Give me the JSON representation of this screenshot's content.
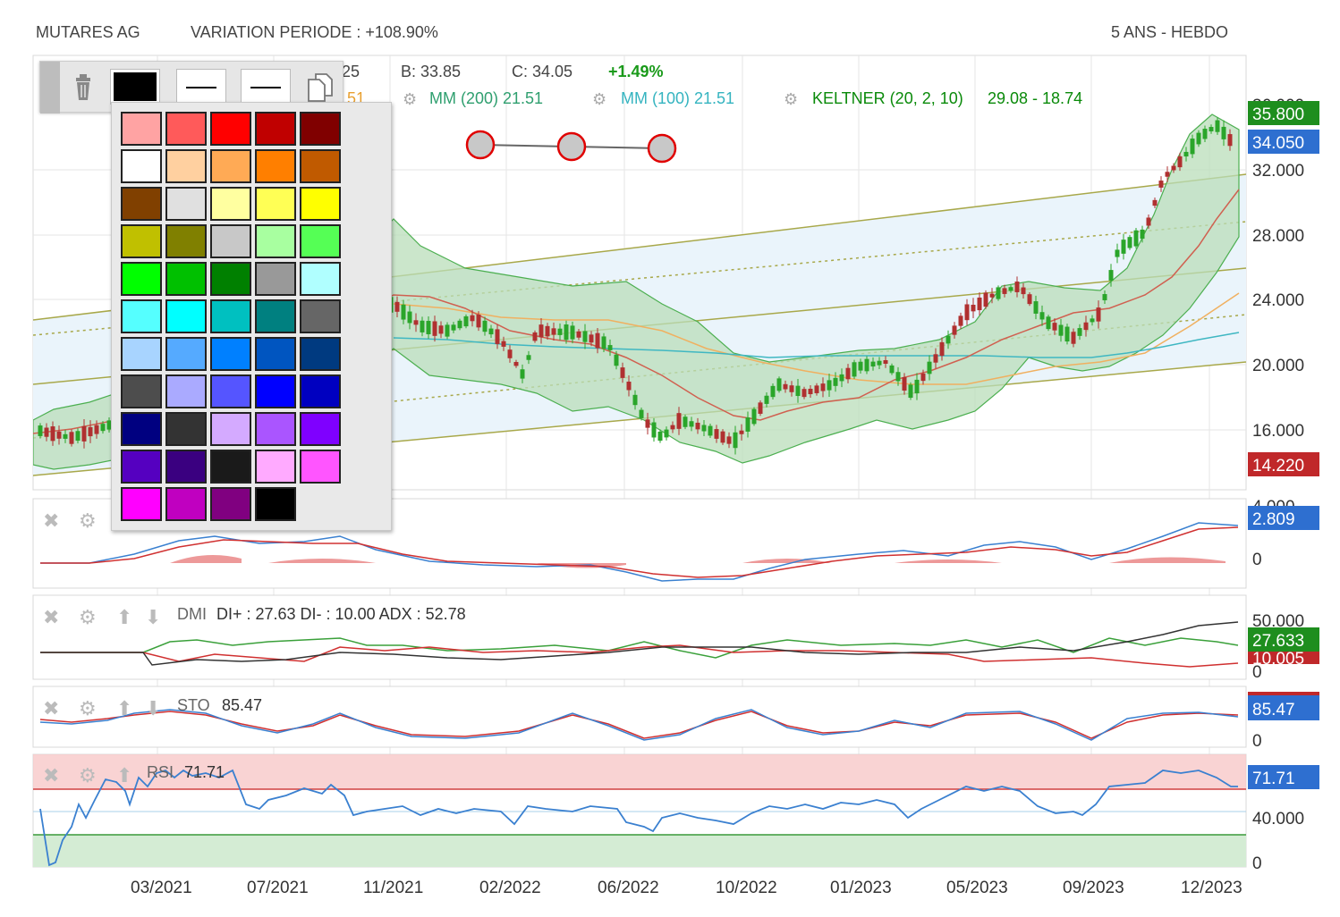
{
  "header": {
    "stock_name": "MUTARES AG",
    "variation": "VARIATION PERIODE : +108.90%",
    "period": "5 ANS - HEBDO"
  },
  "ohlc": {
    "open_partial": "25",
    "high_partial": "51",
    "low": "B: 33.85",
    "close": "C: 34.05",
    "change": "+1.49%"
  },
  "indicators": {
    "mm200": "MM (200)  21.51",
    "mm100": "MM (100)  21.51",
    "keltner_name": "KELTNER (20, 2, 10)",
    "keltner_values": "29.08 - 18.74"
  },
  "price_axis": {
    "ticks": [
      "32.000",
      "28.000",
      "24.000",
      "20.000",
      "16.000"
    ],
    "partial_top": "36.000",
    "tag_high": "35.800",
    "tag_last": "34.050",
    "tag_low": "14.220"
  },
  "macd": {
    "partial_top": "4.000",
    "tag_value": "2.809",
    "zero": "0"
  },
  "dmi": {
    "name": "DMI",
    "readout": "DI+ : 27.63 DI- : 10.00 ADX : 52.78",
    "tick_top": "50.000",
    "tag_di_plus": "27.633",
    "tag_di_minus": "10.005",
    "zero": "0"
  },
  "sto": {
    "name": "STO",
    "value": "85.47",
    "tag_value": "85.47",
    "zero": "0"
  },
  "rsi": {
    "name": "RSI",
    "value": "71.71",
    "tag_value": "71.71",
    "tick_mid": "40.000",
    "zero": "0"
  },
  "x_axis": {
    "labels": [
      "03/2021",
      "07/2021",
      "11/2021",
      "02/2022",
      "06/2022",
      "10/2022",
      "01/2023",
      "05/2023",
      "09/2023",
      "12/2023"
    ]
  },
  "palette_colors": [
    "#ffa3a3",
    "#ff5a5a",
    "#ff0000",
    "#c00000",
    "#800000",
    "#ffffff",
    "#ffd0a0",
    "#ffaa55",
    "#ff7f00",
    "#c05a00",
    "#804000",
    "#e0e0e0",
    "#ffffa0",
    "#ffff55",
    "#ffff00",
    "#c0c000",
    "#808000",
    "#c8c8c8",
    "#a8ffa0",
    "#55ff55",
    "#00ff00",
    "#00c000",
    "#008000",
    "#999999",
    "#b0ffff",
    "#55ffff",
    "#00ffff",
    "#00c0c0",
    "#008080",
    "#666666",
    "#a8d4ff",
    "#55aaff",
    "#0080ff",
    "#0055c0",
    "#003a80",
    "#4d4d4d",
    "#aaaaff",
    "#5555ff",
    "#0000ff",
    "#0000c0",
    "#000080",
    "#333333",
    "#d4aaff",
    "#aa55ff",
    "#7f00ff",
    "#5500c0",
    "#3a0080",
    "#1a1a1a",
    "#ffaaff",
    "#ff55ff",
    "#ff00ff",
    "#c000c0",
    "#800080",
    "#000000"
  ],
  "colors": {
    "green_text": "#1f8f1f",
    "teal_text": "#35b4c0",
    "keltner_text": "#0a8a0a",
    "up_candle": "#2aa52a",
    "down_candle": "#b03030",
    "band_fill": "#b9deb9",
    "channel_fill": "#eaf4fb",
    "blue_tag": "#2e6fd0",
    "green_tag": "#1e8e1e",
    "red_tag": "#c0282a"
  },
  "icons": [
    "trash-icon",
    "copy-icon",
    "close-icon",
    "gear-icon",
    "arrow-up-icon",
    "arrow-down-icon"
  ]
}
